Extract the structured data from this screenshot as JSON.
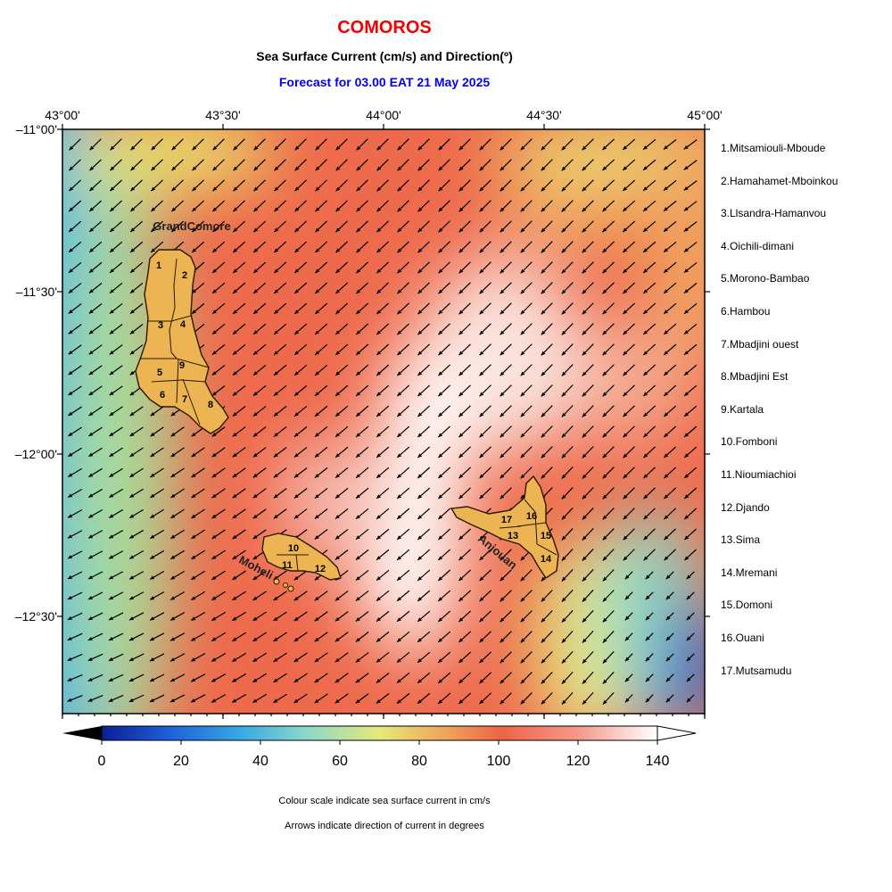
{
  "titles": {
    "main": "COMOROS",
    "subtitle": "Sea Surface Current (cm/s) and Direction(º)",
    "forecast": "Forecast for  03.00 EAT 21 May 2025"
  },
  "axes": {
    "lon_ticks": [
      "43°00'",
      "43°30'",
      "44°00'",
      "44°30'",
      "45°00'"
    ],
    "lat_ticks": [
      "–11°00'",
      "–11°30'",
      "–12°00'",
      "–12°30'"
    ],
    "lon_range": [
      43.0,
      45.0
    ],
    "lat_range": [
      -11.0,
      -12.8
    ]
  },
  "colorbar": {
    "ticks": [
      "0",
      "20",
      "40",
      "60",
      "80",
      "100",
      "120",
      "140"
    ],
    "min": 0,
    "max": 140,
    "colors": [
      "#0a1e96",
      "#1e5fd8",
      "#37a9e6",
      "#8ed8c8",
      "#e6e978",
      "#f0a35a",
      "#ee6446",
      "#f59a8c",
      "#ffffff"
    ]
  },
  "islands": {
    "grand_comore": "GrandComore",
    "moheli": "Moheli",
    "anjouan": "Anjouan",
    "region_numbers": [
      "1",
      "2",
      "3",
      "4",
      "5",
      "6",
      "7",
      "8",
      "9",
      "10",
      "11",
      "12",
      "13",
      "14",
      "15",
      "16",
      "17"
    ]
  },
  "legend_items": [
    "1.Mitsamiouli-Mboude",
    "2.Hamahamet-Mboinkou",
    "3.Llsandra-Hamanvou",
    "4.Oichili-dimani",
    "5.Morono-Bambao",
    "6.Hambou",
    "7.Mbadjini ouest",
    "8.Mbadjini Est",
    "9.Kartala",
    "10.Fomboni",
    "11.Nioumiachioi",
    "12.Djando",
    "13.Sima",
    "14.Mremani",
    "15.Domoni",
    "16.Ouani",
    "17.Mutsamudu"
  ],
  "notes": {
    "colour": "Colour scale indicate sea surface current in cm/s",
    "arrows": "Arrows indicate direction of current in degrees"
  },
  "colors": {
    "title": "#ee0000",
    "forecast": "#0000ee",
    "land": "#ecb452",
    "arrow": "#000000"
  }
}
